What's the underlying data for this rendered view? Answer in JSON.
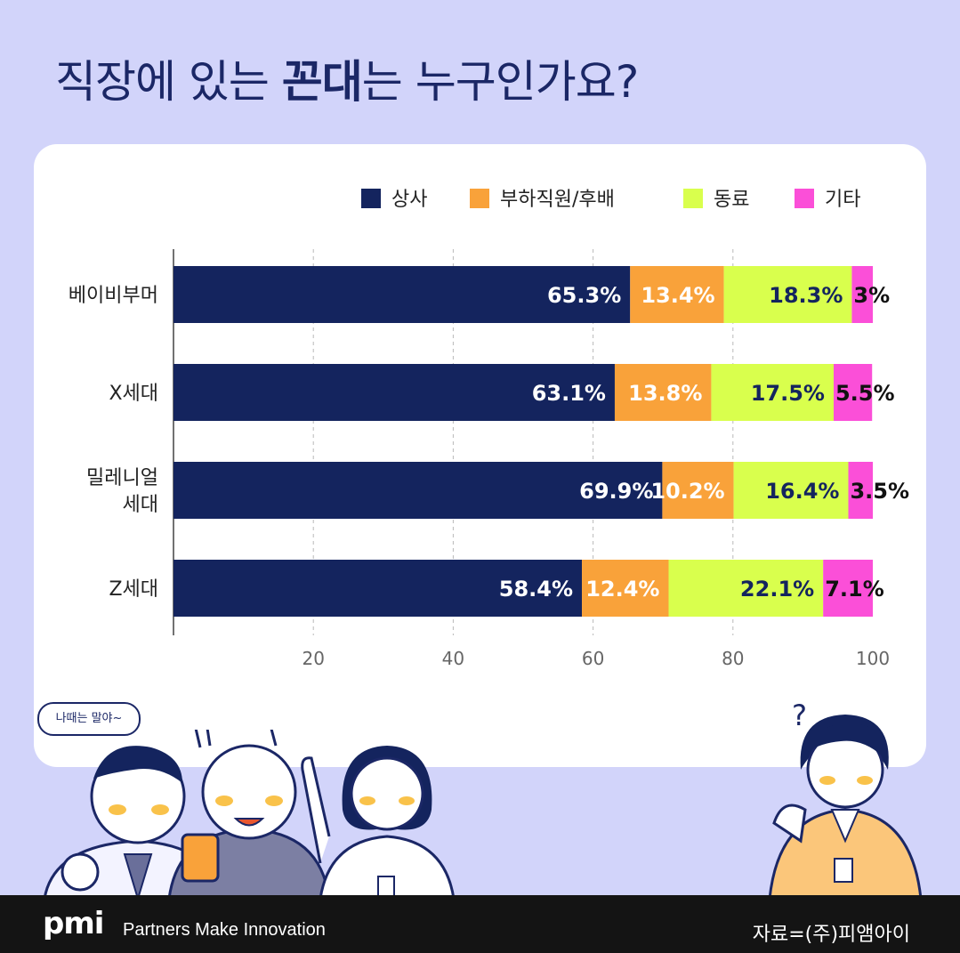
{
  "title": {
    "part1": "직장에 있는 ",
    "emphasis": "꼰대",
    "part2": "는 누구인가요?"
  },
  "colors": {
    "background": "#d2d4fa",
    "title": "#1b2766",
    "상사": "#14245e",
    "부하직원/후배": "#f9a23a",
    "동료": "#d9ff4d",
    "기타": "#fb4fd8"
  },
  "chart_data": {
    "type": "bar",
    "orientation": "horizontal",
    "stacked": true,
    "categories": [
      "베이비부머",
      "X세대",
      "밀레니얼\n세대",
      "Z세대"
    ],
    "series": [
      {
        "name": "상사",
        "values": [
          65.3,
          63.1,
          69.9,
          58.4
        ],
        "labels": [
          "65.3%",
          "63.1%",
          "69.9%",
          "58.4%"
        ]
      },
      {
        "name": "부하직원/후배",
        "values": [
          13.4,
          13.8,
          10.2,
          12.4
        ],
        "labels": [
          "13.4%",
          "13.8%",
          "10.2%",
          "12.4%"
        ]
      },
      {
        "name": "동료",
        "values": [
          18.3,
          17.5,
          16.4,
          22.1
        ],
        "labels": [
          "18.3%",
          "17.5%",
          "16.4%",
          "22.1%"
        ]
      },
      {
        "name": "기타",
        "values": [
          3,
          5.5,
          3.5,
          7.1
        ],
        "labels": [
          "3%",
          "5.5%",
          "3.5%",
          "7.1%"
        ]
      }
    ],
    "x_ticks": [
      20,
      40,
      60,
      80,
      100
    ],
    "xlim": [
      0,
      100
    ],
    "grid": "vertical dashed",
    "legend_position": "top-right"
  },
  "speech_bubble": "나때는 말야~",
  "footer": {
    "logo": "pmi",
    "tagline": "Partners Make Innovation",
    "source": "자료=(주)피앰아이"
  }
}
